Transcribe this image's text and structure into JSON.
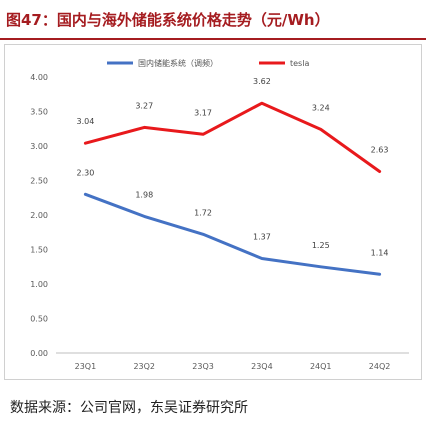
{
  "figure": {
    "title": "图47：国内与海外储能系统价格走势（元/Wh）",
    "source": "数据来源：公司官网，东吴证券研究所"
  },
  "chart_data": {
    "type": "line",
    "title": "",
    "xlabel": "",
    "ylabel": "",
    "categories": [
      "23Q1",
      "23Q2",
      "23Q3",
      "23Q4",
      "24Q1",
      "24Q2"
    ],
    "ylim": [
      0,
      4
    ],
    "yticks": [
      "0.00",
      "0.50",
      "1.00",
      "1.50",
      "2.00",
      "2.50",
      "3.00",
      "3.50",
      "4.00"
    ],
    "grid": false,
    "legend_position": "top",
    "series": [
      {
        "name": "国内储能系统（调频）",
        "color": "#4472c4",
        "values": [
          2.3,
          1.98,
          1.72,
          1.37,
          1.25,
          1.14
        ],
        "labels": [
          "2.30",
          "1.98",
          "1.72",
          "1.37",
          "1.25",
          "1.14"
        ]
      },
      {
        "name": "tesla",
        "color": "#e8191c",
        "values": [
          3.04,
          3.27,
          3.17,
          3.62,
          3.24,
          2.63
        ],
        "labels": [
          "3.04",
          "3.27",
          "3.17",
          "3.62",
          "3.24",
          "2.63"
        ]
      }
    ]
  }
}
